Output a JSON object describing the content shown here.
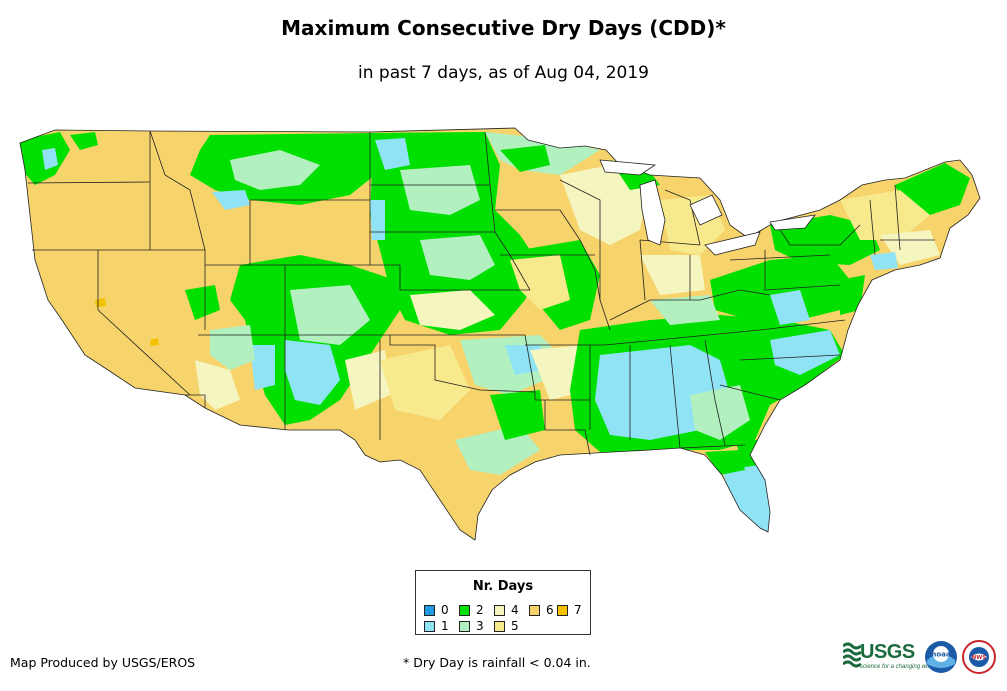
{
  "title": "Maximum Consecutive Dry Days (CDD)*",
  "subtitle": "in past 7 days, as of Aug 04, 2019",
  "legend": {
    "title": "Nr. Days",
    "items": [
      {
        "label": "0",
        "color": "#1e9be0"
      },
      {
        "label": "1",
        "color": "#8fe3f5"
      },
      {
        "label": "2",
        "color": "#00e000"
      },
      {
        "label": "3",
        "color": "#b3f0c0"
      },
      {
        "label": "4",
        "color": "#f5f5c0"
      },
      {
        "label": "5",
        "color": "#f7ea8c"
      },
      {
        "label": "6",
        "color": "#f7d36b"
      },
      {
        "label": "7",
        "color": "#f2c200"
      }
    ]
  },
  "credit": "Map Produced by USGS/EROS",
  "footnote": "* Dry Day is rainfall < 0.04 in.",
  "logos": {
    "usgs": "USGS",
    "usgs_tagline": "science for a changing world",
    "noaa": "noaa",
    "nws": "NWS"
  }
}
